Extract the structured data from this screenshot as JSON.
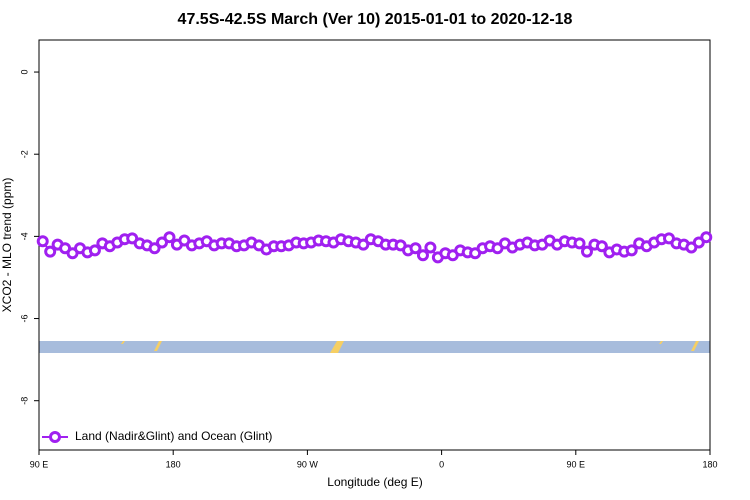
{
  "chart_data": {
    "type": "line",
    "title": "47.5S-42.5S March (Ver 10)   2015-01-01 to 2020-12-18",
    "xlabel": "Longitude (deg E)",
    "ylabel": "XCO2 - MLO trend (ppm)",
    "xlim": [
      90,
      540
    ],
    "ylim": [
      -9.2,
      0.78
    ],
    "xticks": [
      {
        "value": 90,
        "label": "90 E"
      },
      180,
      {
        "value": 270,
        "label": "90 W"
      },
      {
        "value": 360,
        "label": "0"
      },
      {
        "value": 450,
        "label": "90 E"
      },
      {
        "value": 540,
        "label": "180"
      }
    ],
    "yticks": [
      -8,
      -6,
      -4,
      -2,
      0
    ],
    "legend": "bottom-left",
    "x": [
      92.5,
      97.5,
      102.5,
      107.5,
      112.5,
      117.5,
      122.5,
      127.5,
      132.5,
      137.5,
      142.5,
      147.5,
      152.5,
      157.5,
      162.5,
      167.5,
      172.5,
      177.5,
      182.5,
      187.5,
      192.5,
      197.5,
      202.5,
      207.5,
      212.5,
      217.5,
      222.5,
      227.5,
      232.5,
      237.5,
      242.5,
      247.5,
      252.5,
      257.5,
      262.5,
      267.5,
      272.5,
      277.5,
      282.5,
      287.5,
      292.5,
      297.5,
      302.5,
      307.5,
      312.5,
      317.5,
      322.5,
      327.5,
      332.5,
      337.5,
      342.5,
      347.5,
      352.5,
      357.5,
      362.5,
      367.5,
      372.5,
      377.5,
      382.5,
      387.5,
      392.5,
      397.5,
      402.5,
      407.5,
      412.5,
      417.5,
      422.5,
      427.5,
      432.5,
      437.5,
      442.5,
      447.5,
      452.5,
      457.5,
      462.5,
      467.5,
      472.5,
      477.5,
      482.5,
      487.5,
      492.5,
      497.5,
      502.5,
      507.5,
      512.5,
      517.5,
      522.5,
      527.5,
      532.5,
      537.5
    ],
    "series": [
      {
        "name": "Land (Nadir&Glint) and Ocean (Glint)",
        "color": "#a020f0",
        "values": [
          -4.12,
          -4.37,
          -4.2,
          -4.29,
          -4.41,
          -4.29,
          -4.39,
          -4.34,
          -4.17,
          -4.24,
          -4.15,
          -4.07,
          -4.05,
          -4.17,
          -4.22,
          -4.29,
          -4.15,
          -4.02,
          -4.2,
          -4.1,
          -4.22,
          -4.17,
          -4.12,
          -4.22,
          -4.17,
          -4.17,
          -4.24,
          -4.22,
          -4.15,
          -4.22,
          -4.32,
          -4.24,
          -4.24,
          -4.22,
          -4.15,
          -4.17,
          -4.15,
          -4.1,
          -4.12,
          -4.15,
          -4.07,
          -4.12,
          -4.15,
          -4.2,
          -4.07,
          -4.12,
          -4.2,
          -4.2,
          -4.22,
          -4.34,
          -4.29,
          -4.46,
          -4.27,
          -4.51,
          -4.41,
          -4.46,
          -4.34,
          -4.39,
          -4.41,
          -4.29,
          -4.24,
          -4.29,
          -4.17,
          -4.27,
          -4.2,
          -4.15,
          -4.22,
          -4.2,
          -4.1,
          -4.2,
          -4.12,
          -4.15,
          -4.17,
          -4.37,
          -4.2,
          -4.24,
          -4.39,
          -4.32,
          -4.37,
          -4.34,
          -4.17,
          -4.24,
          -4.15,
          -4.07,
          -4.05,
          -4.17,
          -4.2,
          -4.27,
          -4.15,
          -4.02
        ]
      }
    ]
  }
}
